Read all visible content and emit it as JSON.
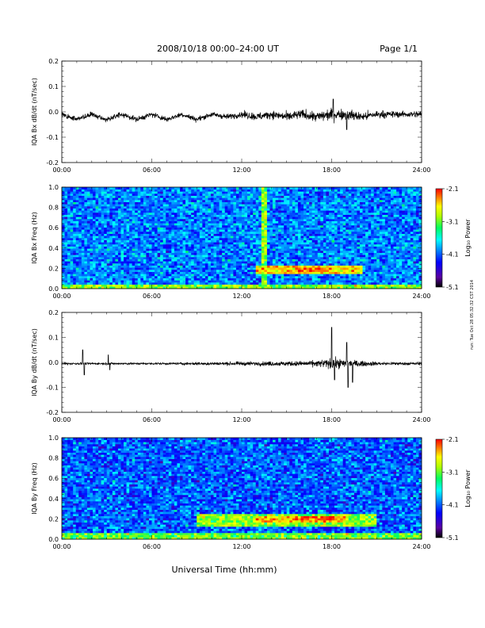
{
  "header": {
    "title": "2008/10/18  00:00–24:00 UT",
    "page": "Page 1/1"
  },
  "side_stamp": "run: Tue Oct 28 05:32:32 CST 2014",
  "xlabel": "Universal Time (hh:mm)",
  "colors": {
    "trace": "#000000",
    "colormap": [
      "#000000",
      "#5a00a0",
      "#0000ff",
      "#0090ff",
      "#00ffff",
      "#00ff60",
      "#b0ff00",
      "#ffff00",
      "#ff8000",
      "#ff0000"
    ]
  },
  "chart_data": [
    {
      "type": "line",
      "ylabel": "IQA Bx dB/dt (nT/sec)",
      "xlim": [
        "00:00",
        "24:00"
      ],
      "ylim": [
        -0.2,
        0.2
      ],
      "x_ticks": [
        "00:00",
        "06:00",
        "12:00",
        "18:00",
        "24:00"
      ],
      "y_ticks": [
        "0.2",
        "0.1",
        "0.0",
        "-0.1",
        "-0.2"
      ],
      "series": [
        {
          "x_hours": [
            0,
            1,
            2,
            3,
            4,
            5,
            6,
            7,
            8,
            9,
            10,
            11,
            12,
            13,
            14,
            15,
            16,
            17,
            18,
            19,
            20,
            21,
            22,
            23,
            24
          ],
          "y_center": [
            -0.01,
            -0.03,
            -0.01,
            -0.03,
            -0.01,
            -0.03,
            -0.01,
            -0.03,
            -0.01,
            -0.03,
            -0.01,
            -0.02,
            -0.01,
            -0.02,
            -0.01,
            -0.02,
            -0.01,
            -0.02,
            -0.01,
            -0.01,
            -0.02,
            -0.01,
            -0.01,
            -0.01,
            -0.01
          ],
          "y_halfrange": [
            0.02,
            0.02,
            0.02,
            0.02,
            0.02,
            0.02,
            0.02,
            0.02,
            0.02,
            0.02,
            0.02,
            0.02,
            0.025,
            0.03,
            0.03,
            0.035,
            0.035,
            0.04,
            0.045,
            0.04,
            0.035,
            0.03,
            0.025,
            0.025,
            0.025
          ],
          "peaks": [
            {
              "x_hours": 18.1,
              "y": 0.05
            },
            {
              "x_hours": 19.0,
              "y": -0.07
            }
          ]
        }
      ]
    },
    {
      "type": "heatmap",
      "ylabel": "IQA Bx Freq (Hz)",
      "xlim": [
        "00:00",
        "24:00"
      ],
      "ylim": [
        0.0,
        1.0
      ],
      "x_ticks": [
        "00:00",
        "06:00",
        "12:00",
        "18:00",
        "24:00"
      ],
      "y_ticks": [
        "1.0",
        "0.8",
        "0.6",
        "0.4",
        "0.2",
        "0.0"
      ],
      "colorbar": {
        "label": "Log₁₀ Power",
        "ticks": [
          "-2.1",
          "-3.1",
          "-4.1",
          "-5.1"
        ],
        "range": [
          -5.1,
          -2.1
        ]
      },
      "background_log_power": -4.0,
      "features": [
        {
          "name": "",
          "band_hz": [
            0.0,
            0.05
          ],
          "time_hours": [
            0,
            24
          ],
          "log_power": -3.0
        },
        {
          "name": "",
          "band_hz": [
            0.14,
            0.22
          ],
          "time_hours": [
            13,
            20
          ],
          "log_power": -2.6
        },
        {
          "name": "",
          "band_hz": [
            0.17,
            0.21
          ],
          "time_hours": [
            15.5,
            18
          ],
          "log_power": -2.2
        },
        {
          "name": "",
          "band_hz": [
            0.0,
            1.0
          ],
          "time_hours": [
            13.4,
            13.6
          ],
          "log_power": -3.0
        }
      ]
    },
    {
      "type": "line",
      "ylabel": "IQA By dB/dt (nT/sec)",
      "xlim": [
        "00:00",
        "24:00"
      ],
      "ylim": [
        -0.2,
        0.2
      ],
      "x_ticks": [
        "00:00",
        "06:00",
        "12:00",
        "18:00",
        "24:00"
      ],
      "y_ticks": [
        "0.2",
        "0.1",
        "0.0",
        "-0.1",
        "-0.2"
      ],
      "series": [
        {
          "x_hours": [
            0,
            1,
            2,
            3,
            4,
            5,
            6,
            7,
            8,
            9,
            10,
            11,
            12,
            13,
            14,
            15,
            16,
            17,
            18,
            19,
            20,
            21,
            22,
            23,
            24
          ],
          "y_center": [
            -0.005,
            -0.005,
            -0.005,
            -0.005,
            -0.005,
            -0.005,
            -0.005,
            -0.005,
            -0.005,
            -0.005,
            -0.005,
            -0.005,
            -0.005,
            -0.005,
            -0.005,
            -0.005,
            -0.005,
            -0.005,
            -0.005,
            -0.005,
            -0.005,
            -0.005,
            -0.005,
            -0.005,
            -0.005
          ],
          "y_halfrange": [
            0.008,
            0.008,
            0.008,
            0.008,
            0.008,
            0.008,
            0.008,
            0.008,
            0.01,
            0.01,
            0.012,
            0.012,
            0.015,
            0.015,
            0.018,
            0.018,
            0.02,
            0.025,
            0.04,
            0.035,
            0.02,
            0.015,
            0.012,
            0.012,
            0.012
          ],
          "peaks": [
            {
              "x_hours": 1.4,
              "y": 0.05
            },
            {
              "x_hours": 1.5,
              "y": -0.05
            },
            {
              "x_hours": 3.1,
              "y": 0.03
            },
            {
              "x_hours": 3.2,
              "y": -0.03
            },
            {
              "x_hours": 18.0,
              "y": 0.14
            },
            {
              "x_hours": 18.2,
              "y": -0.07
            },
            {
              "x_hours": 19.0,
              "y": 0.08
            },
            {
              "x_hours": 19.1,
              "y": -0.1
            },
            {
              "x_hours": 19.4,
              "y": -0.08
            }
          ]
        }
      ]
    },
    {
      "type": "heatmap",
      "ylabel": "IQA By Freq (Hz)",
      "xlim": [
        "00:00",
        "24:00"
      ],
      "ylim": [
        0.0,
        1.0
      ],
      "x_ticks": [
        "00:00",
        "06:00",
        "12:00",
        "18:00",
        "24:00"
      ],
      "y_ticks": [
        "1.0",
        "0.8",
        "0.6",
        "0.4",
        "0.2",
        "0.0"
      ],
      "colorbar": {
        "label": "Log₁₀ Power",
        "ticks": [
          "-2.1",
          "-3.1",
          "-4.1",
          "-5.1"
        ],
        "range": [
          -5.1,
          -2.1
        ]
      },
      "background_log_power": -4.1,
      "features": [
        {
          "name": "",
          "band_hz": [
            0.0,
            0.06
          ],
          "time_hours": [
            0,
            24
          ],
          "log_power": -3.1
        },
        {
          "name": "",
          "band_hz": [
            0.12,
            0.24
          ],
          "time_hours": [
            9,
            21
          ],
          "log_power": -3.0
        },
        {
          "name": "",
          "band_hz": [
            0.17,
            0.23
          ],
          "time_hours": [
            13,
            19
          ],
          "log_power": -2.5
        },
        {
          "name": "",
          "band_hz": [
            0.18,
            0.22
          ],
          "time_hours": [
            16,
            18.2
          ],
          "log_power": -2.2
        }
      ]
    }
  ]
}
